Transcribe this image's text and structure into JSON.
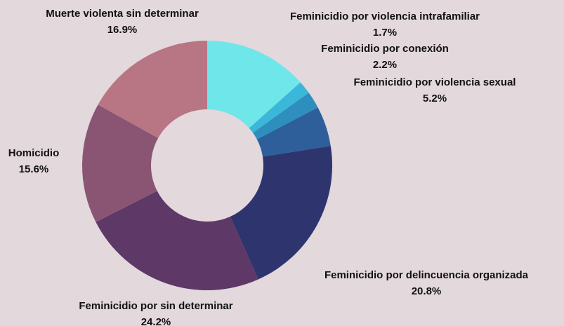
{
  "chart_data": {
    "type": "donut",
    "categories": [
      null,
      "Feminicidio por violencia intrafamiliar",
      "Feminicidio por conexión",
      "Feminicidio por violencia sexual",
      "Feminicidio por delincuencia organizada",
      "Feminicidio por sin determinar",
      "Homicidio",
      "Muerte violenta sin determinar"
    ],
    "values": [
      13.4,
      1.7,
      2.2,
      5.2,
      20.8,
      24.2,
      15.6,
      16.9
    ],
    "value_labels": [
      null,
      "1.7%",
      "2.2%",
      "5.2%",
      "20.8%",
      "24.2%",
      "15.6%",
      "16.9%"
    ],
    "colors": [
      "#6ee6ea",
      "#3ab7d9",
      "#2e8fbf",
      "#2e5f9a",
      "#2e356e",
      "#5e3866",
      "#8a5572",
      "#b87584"
    ]
  }
}
